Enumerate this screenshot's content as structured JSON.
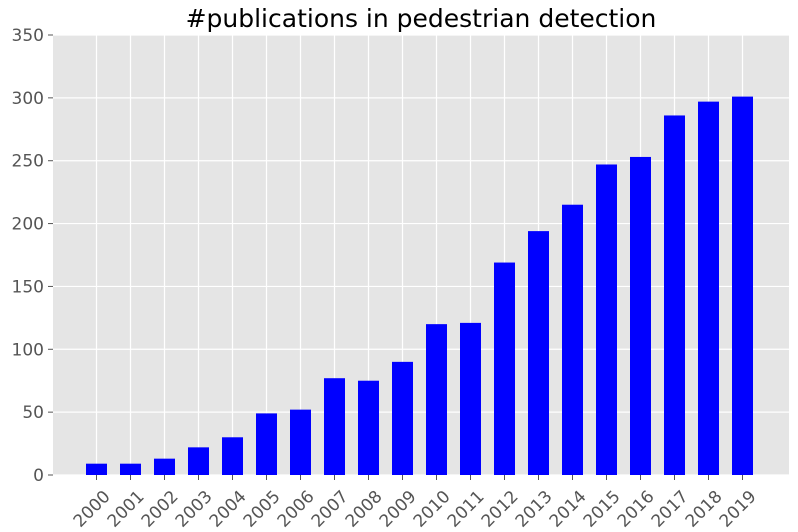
{
  "chart_data": {
    "type": "bar",
    "title": "#publications in pedestrian detection",
    "categories": [
      "2000",
      "2001",
      "2002",
      "2003",
      "2004",
      "2005",
      "2006",
      "2007",
      "2008",
      "2009",
      "2010",
      "2011",
      "2012",
      "2013",
      "2014",
      "2015",
      "2016",
      "2017",
      "2018",
      "2019"
    ],
    "values": [
      9,
      9,
      13,
      22,
      30,
      49,
      52,
      77,
      75,
      90,
      120,
      121,
      169,
      194,
      215,
      247,
      253,
      286,
      297,
      301
    ],
    "ylim": [
      0,
      350
    ],
    "yticks": [
      0,
      50,
      100,
      150,
      200,
      250,
      300,
      350
    ],
    "xlabel": "",
    "ylabel": "",
    "grid": true,
    "bar_color": "#0000ff",
    "background_color": "#e5e5e5"
  }
}
